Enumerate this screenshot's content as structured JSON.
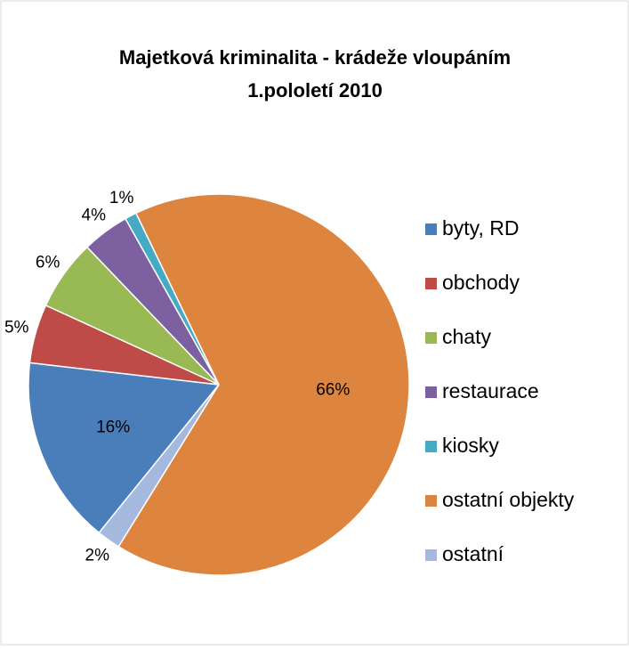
{
  "chart_data": {
    "type": "pie",
    "title": [
      "Majetková kriminalita - krádeže vloupáním",
      "1.pololetí 2010"
    ],
    "categories": [
      "byty, RD",
      "obchody",
      "chaty",
      "restaurace",
      "kiosky",
      "ostatní objekty",
      "ostatní"
    ],
    "values": [
      16,
      5,
      6,
      4,
      1,
      66,
      2
    ],
    "value_labels": [
      "16%",
      "5%",
      "6%",
      "4%",
      "1%",
      "66%",
      "2%"
    ],
    "colors": [
      "#4a7ebb",
      "#be4b48",
      "#98b954",
      "#7d60a0",
      "#46aac5",
      "#dd843f",
      "#a5b9de"
    ],
    "legend": "right"
  }
}
